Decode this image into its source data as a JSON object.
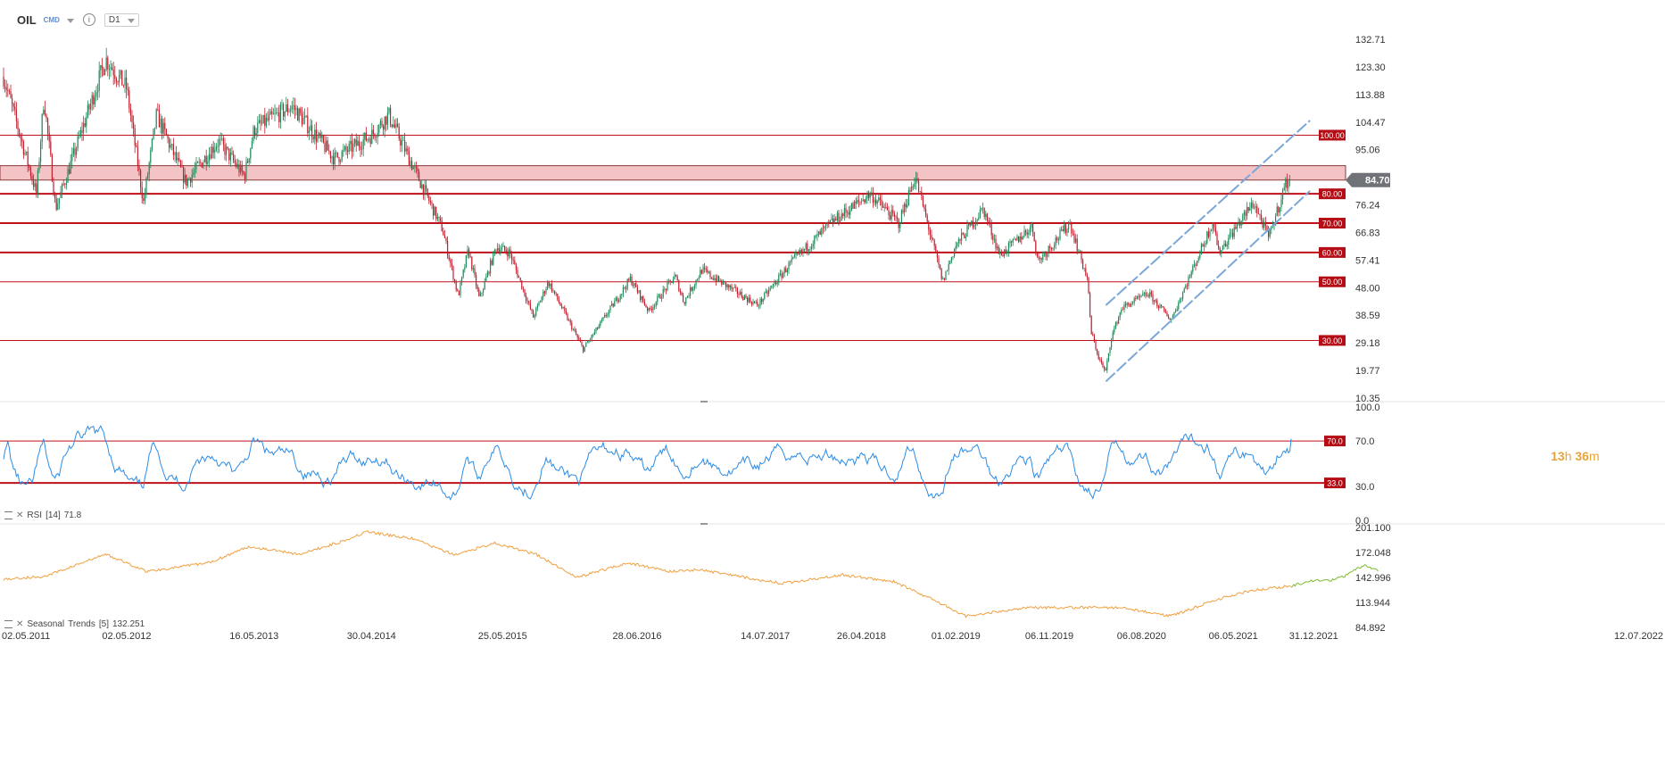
{
  "header": {
    "symbol": "OIL",
    "market": "CMD",
    "info_glyph": "i",
    "timeframe": "D1"
  },
  "countdown": {
    "h": "13",
    "h_unit": "h",
    "m": "36",
    "m_unit": "m"
  },
  "last_price": "84.70",
  "colors": {
    "up": "#1e8a5a",
    "down": "#c0202e",
    "level": "#c0101a",
    "level_label_bg": "#b50d15",
    "rsi": "#2b8be6",
    "seasonal": "#f0a040",
    "forecast": "#7cbb2e",
    "zone": "#f3c3c6",
    "channel": "#7aa7d8",
    "last_bg": "#6f7377"
  },
  "rsi_label": {
    "name": "RSI",
    "param": "[14]",
    "value": "71.8"
  },
  "seasonal_label": {
    "name": "Seasonal",
    "name2": "Trends",
    "param": "[5]",
    "value": "132.251"
  },
  "chart_data": [
    {
      "type": "candlestick",
      "title": "OIL",
      "ylim": [
        10.35,
        132.71
      ],
      "y_ticks": [
        "132.71",
        "123.30",
        "113.88",
        "104.47",
        "95.06",
        "84.70",
        "76.24",
        "66.83",
        "57.41",
        "48.00",
        "38.59",
        "29.18",
        "19.77",
        "10.35"
      ],
      "levels": [
        {
          "value": 100,
          "label": "100.00"
        },
        {
          "value": 80,
          "label": "80.00"
        },
        {
          "value": 70,
          "label": "70.00"
        },
        {
          "value": 60,
          "label": "60.00"
        },
        {
          "value": 50,
          "label": "50.00"
        },
        {
          "value": 30,
          "label": "30.00"
        }
      ],
      "resistance_zone": [
        84.7,
        89.6
      ],
      "channel": {
        "lower": [
          [
            "2020-04-22",
            16
          ],
          [
            "2021-12-20",
            81
          ]
        ],
        "upper": [
          [
            "2020-04-22",
            42
          ],
          [
            "2021-12-20",
            105
          ]
        ]
      },
      "price_path": [
        [
          "2011-05-02",
          120
        ],
        [
          "2011-08-08",
          80
        ],
        [
          "2011-08-30",
          113
        ],
        [
          "2011-10-04",
          75
        ],
        [
          "2012-03-01",
          126
        ],
        [
          "2012-05-02",
          116
        ],
        [
          "2012-06-21",
          77
        ],
        [
          "2012-07-30",
          107
        ],
        [
          "2012-10-25",
          84
        ],
        [
          "2013-01-30",
          98
        ],
        [
          "2013-04-17",
          86
        ],
        [
          "2013-05-16",
          102
        ],
        [
          "2013-09-06",
          110
        ],
        [
          "2014-01-10",
          92
        ],
        [
          "2014-04-30",
          100
        ],
        [
          "2014-06-20",
          107
        ],
        [
          "2014-11-27",
          68
        ],
        [
          "2015-01-13",
          45
        ],
        [
          "2015-02-12",
          61
        ],
        [
          "2015-03-17",
          44
        ],
        [
          "2015-05-06",
          62
        ],
        [
          "2015-06-15",
          60
        ],
        [
          "2015-08-24",
          38
        ],
        [
          "2015-10-08",
          50
        ],
        [
          "2016-01-20",
          27
        ],
        [
          "2016-06-08",
          51
        ],
        [
          "2016-08-02",
          40
        ],
        [
          "2016-10-19",
          52
        ],
        [
          "2016-11-14",
          43
        ],
        [
          "2017-01-06",
          54
        ],
        [
          "2017-06-21",
          42
        ],
        [
          "2017-09-25",
          56
        ],
        [
          "2018-01-25",
          70
        ],
        [
          "2018-05-22",
          80
        ],
        [
          "2018-08-15",
          70
        ],
        [
          "2018-10-03",
          86
        ],
        [
          "2018-12-24",
          50
        ],
        [
          "2019-01-30",
          62
        ],
        [
          "2019-04-23",
          75
        ],
        [
          "2019-06-12",
          59
        ],
        [
          "2019-09-16",
          69
        ],
        [
          "2019-10-03",
          57
        ],
        [
          "2020-01-06",
          70
        ],
        [
          "2020-02-27",
          51
        ],
        [
          "2020-03-09",
          33
        ],
        [
          "2020-04-01",
          24
        ],
        [
          "2020-04-21",
          19
        ],
        [
          "2020-05-08",
          31
        ],
        [
          "2020-06-08",
          41
        ],
        [
          "2020-08-26",
          46
        ],
        [
          "2020-11-02",
          37
        ],
        [
          "2021-01-08",
          55
        ],
        [
          "2021-03-08",
          71
        ],
        [
          "2021-03-23",
          60
        ],
        [
          "2021-07-05",
          77
        ],
        [
          "2021-08-20",
          65
        ],
        [
          "2021-10-07",
          83
        ],
        [
          "2021-10-25",
          86
        ]
      ],
      "time_labels": [
        "02.05.2011",
        "02.05.2012",
        "16.05.2013",
        "30.04.2014",
        "25.05.2015",
        "28.06.2016",
        "14.07.2017",
        "26.04.2018",
        "01.02.2019",
        "06.11.2019",
        "06.08.2020",
        "06.05.2021",
        "31.12.2021",
        "12.07.2022"
      ]
    },
    {
      "type": "line",
      "name": "RSI [14]",
      "ylim": [
        0,
        100
      ],
      "y_ticks": [
        "100.0",
        "70.0",
        "30.0",
        "0.0"
      ],
      "levels": [
        {
          "value": 70,
          "label": "70.0"
        },
        {
          "value": 33,
          "label": "33.0"
        }
      ],
      "last": 71.8
    },
    {
      "type": "line",
      "name": "Seasonal Trends [5]",
      "ylim": [
        84.892,
        201.1
      ],
      "y_ticks": [
        "201.100",
        "172.048",
        "142.996",
        "113.944",
        "84.892"
      ],
      "last": 132.251,
      "path": [
        [
          "2011-05-02",
          141
        ],
        [
          "2011-09-01",
          144
        ],
        [
          "2012-03-01",
          170
        ],
        [
          "2012-07-01",
          150
        ],
        [
          "2013-01-01",
          160
        ],
        [
          "2013-05-01",
          179
        ],
        [
          "2013-10-01",
          170
        ],
        [
          "2014-02-01",
          185
        ],
        [
          "2014-04-15",
          196
        ],
        [
          "2014-09-01",
          188
        ],
        [
          "2015-01-01",
          169
        ],
        [
          "2015-05-01",
          183
        ],
        [
          "2015-09-01",
          170
        ],
        [
          "2016-01-01",
          143
        ],
        [
          "2016-06-01",
          160
        ],
        [
          "2016-10-01",
          150
        ],
        [
          "2017-01-01",
          152
        ],
        [
          "2017-09-01",
          136
        ],
        [
          "2018-03-01",
          146
        ],
        [
          "2018-08-01",
          138
        ],
        [
          "2018-12-01",
          116
        ],
        [
          "2019-03-01",
          98
        ],
        [
          "2019-09-01",
          108
        ],
        [
          "2020-06-01",
          108
        ],
        [
          "2020-11-01",
          98
        ],
        [
          "2021-04-01",
          119
        ],
        [
          "2021-07-01",
          128
        ],
        [
          "2021-10-25",
          133
        ]
      ],
      "forecast": [
        [
          "2021-10-25",
          133
        ],
        [
          "2022-01-01",
          140
        ],
        [
          "2022-02-15",
          139
        ],
        [
          "2022-04-01",
          144
        ],
        [
          "2022-06-01",
          158
        ],
        [
          "2022-07-12",
          150
        ]
      ]
    }
  ]
}
